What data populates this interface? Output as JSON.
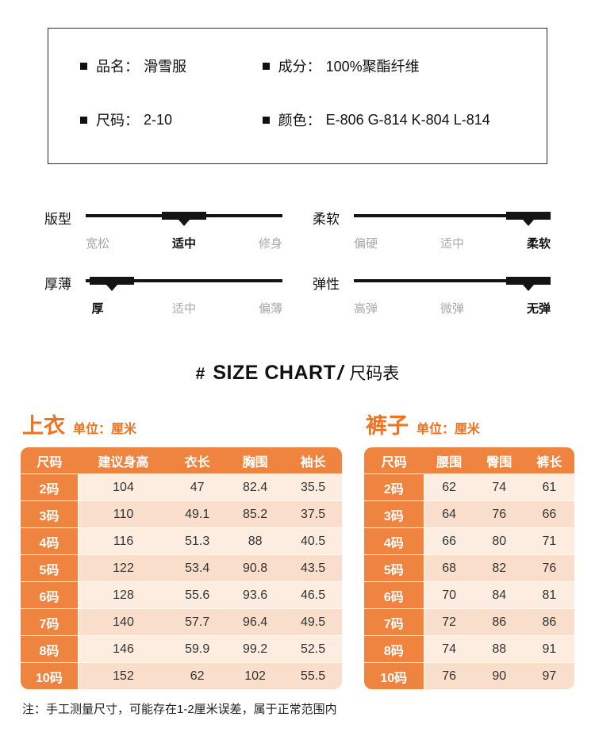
{
  "colors": {
    "accent_orange": "#f2711c",
    "table_header_orange": "#ef8440",
    "row_light": "#fcede0",
    "row_dark": "#f8decb"
  },
  "info_box": {
    "items": [
      {
        "label": "品名：",
        "value": "滑雪服"
      },
      {
        "label": "成分：",
        "value": "100%聚酯纤维"
      },
      {
        "label": "尺码：",
        "value": "2-10"
      },
      {
        "label": "颜色：",
        "value": "E-806 G-814 K-804 L-814"
      }
    ]
  },
  "attributes": [
    {
      "name": "版型",
      "options": [
        "宽松",
        "适中",
        "修身"
      ],
      "selected": 1
    },
    {
      "name": "柔软",
      "options": [
        "偏硬",
        "适中",
        "柔软"
      ],
      "selected": 2
    },
    {
      "name": "厚薄",
      "options": [
        "厚",
        "适中",
        "偏薄"
      ],
      "selected": 0
    },
    {
      "name": "弹性",
      "options": [
        "高弹",
        "微弹",
        "无弹"
      ],
      "selected": 2
    }
  ],
  "size_chart_heading": {
    "hash": "#",
    "title_en": "SIZE CHART",
    "slash": "/",
    "title_cn": "尺码表"
  },
  "tables": [
    {
      "title": "上衣",
      "unit": "单位：厘米",
      "headers": [
        "尺码",
        "建议身高",
        "衣长",
        "胸围",
        "袖长"
      ],
      "rows": [
        [
          "2码",
          "104",
          "47",
          "82.4",
          "35.5"
        ],
        [
          "3码",
          "110",
          "49.1",
          "85.2",
          "37.5"
        ],
        [
          "4码",
          "116",
          "51.3",
          "88",
          "40.5"
        ],
        [
          "5码",
          "122",
          "53.4",
          "90.8",
          "43.5"
        ],
        [
          "6码",
          "128",
          "55.6",
          "93.6",
          "46.5"
        ],
        [
          "7码",
          "140",
          "57.7",
          "96.4",
          "49.5"
        ],
        [
          "8码",
          "146",
          "59.9",
          "99.2",
          "52.5"
        ],
        [
          "10码",
          "152",
          "62",
          "102",
          "55.5"
        ]
      ]
    },
    {
      "title": "裤子",
      "unit": "单位：厘米",
      "headers": [
        "尺码",
        "腰围",
        "臀围",
        "裤长"
      ],
      "rows": [
        [
          "2码",
          "62",
          "74",
          "61"
        ],
        [
          "3码",
          "64",
          "76",
          "66"
        ],
        [
          "4码",
          "66",
          "80",
          "71"
        ],
        [
          "5码",
          "68",
          "82",
          "76"
        ],
        [
          "6码",
          "70",
          "84",
          "81"
        ],
        [
          "7码",
          "72",
          "86",
          "86"
        ],
        [
          "8码",
          "74",
          "88",
          "91"
        ],
        [
          "10码",
          "76",
          "90",
          "97"
        ]
      ]
    }
  ],
  "note": "注：手工测量尺寸，可能存在1-2厘米误差，属于正常范围内"
}
